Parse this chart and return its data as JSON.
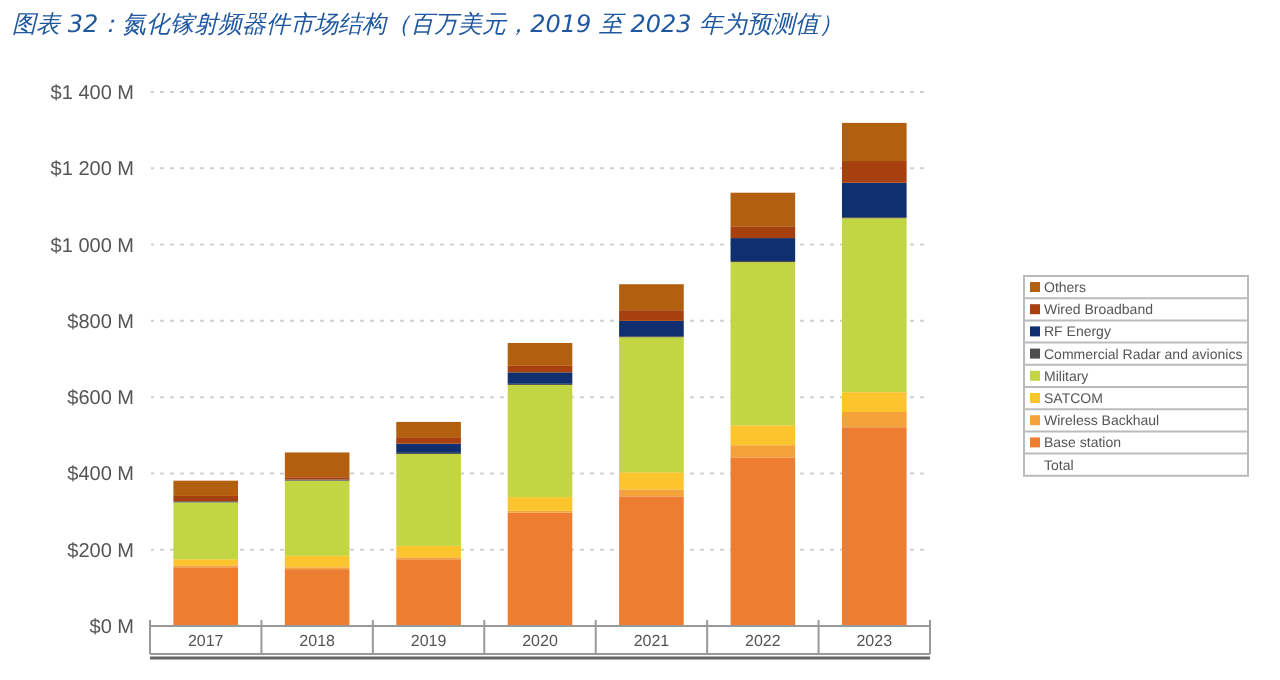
{
  "chart_data": {
    "type": "bar",
    "title": "图表 32：氮化镓射频器件市场结构（百万美元，2019 至 2023 年为预测值）",
    "stacked": true,
    "categories": [
      "2017",
      "2018",
      "2019",
      "2020",
      "2021",
      "2022",
      "2023"
    ],
    "series": [
      {
        "name": "Base station",
        "color": "#ed7d31",
        "values": [
          154,
          149,
          175,
          297,
          340,
          442,
          521
        ]
      },
      {
        "name": "Wireless Backhaul",
        "color": "#f4a23a",
        "values": [
          5,
          5,
          5,
          5,
          18,
          32,
          40
        ]
      },
      {
        "name": "SATCOM",
        "color": "#fcc52e",
        "values": [
          16,
          30,
          30,
          36,
          45,
          52,
          52
        ]
      },
      {
        "name": "Military",
        "color": "#c2d644",
        "values": [
          149,
          197,
          241,
          294,
          354,
          428,
          456
        ]
      },
      {
        "name": "Commercial Radar and avionics",
        "color": "#4d4d4d",
        "values": [
          3,
          3,
          3,
          3,
          3,
          3,
          3
        ]
      },
      {
        "name": "RF Energy",
        "color": "#0f2f6e",
        "values": [
          0,
          0,
          24,
          30,
          40,
          60,
          90
        ]
      },
      {
        "name": "Wired Broadband",
        "color": "#a6400f",
        "values": [
          14,
          6,
          17,
          17,
          28,
          31,
          57
        ]
      },
      {
        "name": "Others",
        "color": "#b2600f",
        "values": [
          40,
          65,
          40,
          60,
          68,
          88,
          100
        ]
      },
      {
        "name": "Total",
        "color": null,
        "values": [
          null,
          null,
          null,
          null,
          null,
          null,
          null
        ]
      }
    ],
    "ylim": [
      0,
      1400
    ],
    "yticks": [
      {
        "value": 0,
        "label": "$0 M"
      },
      {
        "value": 200,
        "label": "$200 M"
      },
      {
        "value": 400,
        "label": "$400 M"
      },
      {
        "value": 600,
        "label": "$600 M"
      },
      {
        "value": 800,
        "label": "$800 M"
      },
      {
        "value": 1000,
        "label": "$1 000 M"
      },
      {
        "value": 1200,
        "label": "$1 200 M"
      },
      {
        "value": 1400,
        "label": "$1 400 M"
      }
    ],
    "grid": "y",
    "legend": "right"
  }
}
